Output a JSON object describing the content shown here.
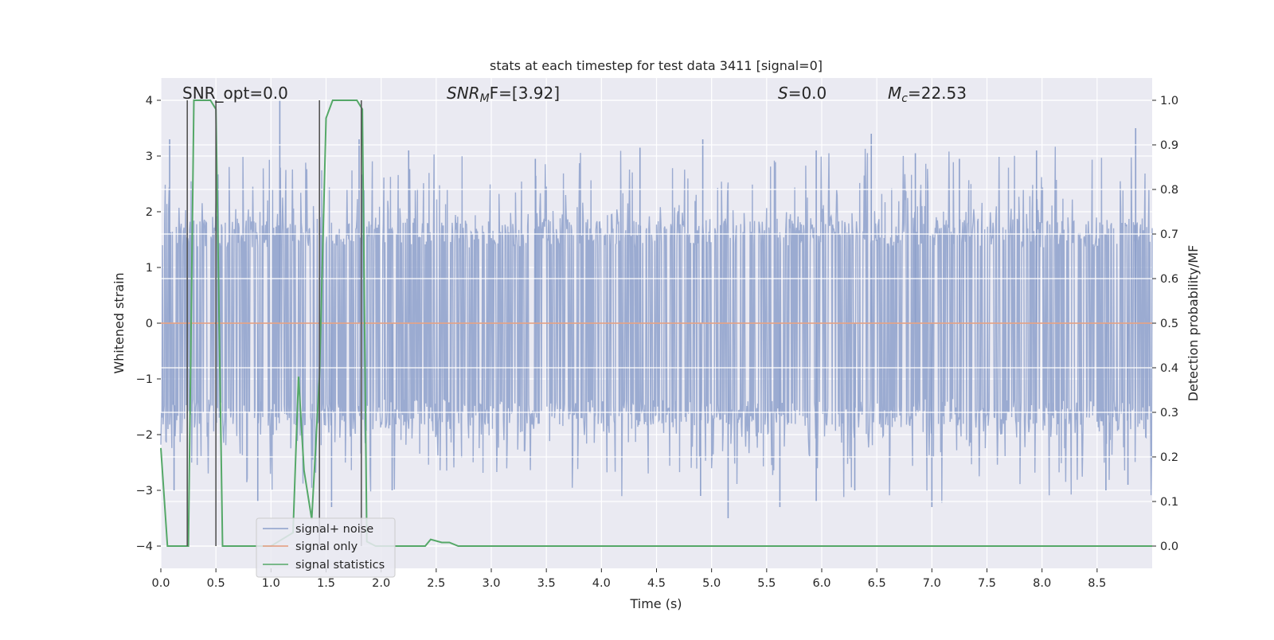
{
  "chart_data": {
    "type": "line",
    "title": "stats at each timestep for test data 3411 [signal=0]",
    "xlabel": "Time (s)",
    "ylabel_left": "Whitened strain",
    "ylabel_right": "Detection probability/MF",
    "xlim": [
      0.0,
      9.0
    ],
    "ylim_left": [
      -4.4,
      4.4
    ],
    "ylim_right": [
      -0.05,
      1.05
    ],
    "xticks": [
      "0.0",
      "0.5",
      "1.0",
      "1.5",
      "2.0",
      "2.5",
      "3.0",
      "3.5",
      "4.0",
      "4.5",
      "5.0",
      "5.5",
      "6.0",
      "6.5",
      "7.0",
      "7.5",
      "8.0",
      "8.5"
    ],
    "yticks_left": [
      "−4",
      "−3",
      "−2",
      "−1",
      "0",
      "1",
      "2",
      "3",
      "4"
    ],
    "yticks_right": [
      "0.0",
      "0.1",
      "0.2",
      "0.3",
      "0.4",
      "0.5",
      "0.6",
      "0.7",
      "0.8",
      "0.9",
      "1.0"
    ],
    "annotations": {
      "snr_opt": "SNR_opt=0.0",
      "snr_mf_base": "SNR",
      "snr_mf_sub": "M",
      "snr_mf_tail": "F=[3.92]",
      "s_base": "S",
      "s_tail": "=0.0",
      "mc_base": "M",
      "mc_sub": "c",
      "mc_tail": "=22.53"
    },
    "legend": {
      "position": "lower-left",
      "entries": [
        "signal+ noise",
        "signal only",
        "signal statistics"
      ]
    },
    "series": [
      {
        "name": "signal+ noise",
        "kind": "noise",
        "color": "#8da0cb",
        "envelope": 1.6,
        "spike_peaks": [
          {
            "x": 0.08,
            "v": 3.3
          },
          {
            "x": 1.08,
            "v": 4.0
          },
          {
            "x": 1.8,
            "v": 3.3
          },
          {
            "x": 2.25,
            "v": 3.1
          },
          {
            "x": 3.4,
            "v": 2.95
          },
          {
            "x": 4.35,
            "v": 3.15
          },
          {
            "x": 4.92,
            "v": 3.3
          },
          {
            "x": 5.95,
            "v": 3.1
          },
          {
            "x": 6.45,
            "v": 3.4
          },
          {
            "x": 6.85,
            "v": 3.05
          },
          {
            "x": 7.25,
            "v": 2.95
          },
          {
            "x": 7.95,
            "v": 3.1
          },
          {
            "x": 8.85,
            "v": 3.5
          }
        ],
        "spike_troughs": [
          {
            "x": 0.12,
            "v": -3.0
          },
          {
            "x": 0.88,
            "v": -3.2
          },
          {
            "x": 1.55,
            "v": -3.3
          },
          {
            "x": 2.1,
            "v": -3.0
          },
          {
            "x": 4.9,
            "v": -3.1
          },
          {
            "x": 5.15,
            "v": -3.5
          },
          {
            "x": 5.62,
            "v": -3.3
          },
          {
            "x": 5.95,
            "v": -3.2
          },
          {
            "x": 6.3,
            "v": -3.0
          },
          {
            "x": 7.0,
            "v": -3.3
          },
          {
            "x": 8.58,
            "v": -3.0
          },
          {
            "x": 8.78,
            "v": -2.9
          }
        ]
      },
      {
        "name": "signal only",
        "kind": "line",
        "axis": "left",
        "color": "#e39a7b",
        "x": [
          0.0,
          9.0
        ],
        "y": [
          0.0,
          0.0
        ]
      },
      {
        "name": "signal statistics",
        "kind": "line",
        "axis": "right",
        "color": "#55a868",
        "x": [
          0.0,
          0.06,
          0.2,
          0.25,
          0.3,
          0.4,
          0.45,
          0.5,
          0.56,
          0.65,
          0.7,
          1.0,
          1.2,
          1.25,
          1.3,
          1.37,
          1.44,
          1.5,
          1.56,
          1.78,
          1.83,
          1.87,
          1.95,
          2.3,
          2.4,
          2.45,
          2.55,
          2.62,
          2.7,
          9.0
        ],
        "y": [
          0.22,
          0.0,
          0.0,
          0.0,
          1.0,
          1.0,
          1.0,
          0.98,
          0.0,
          0.0,
          0.0,
          0.0,
          0.03,
          0.38,
          0.17,
          0.06,
          0.38,
          0.96,
          1.0,
          1.0,
          0.98,
          0.01,
          0.0,
          0.0,
          0.0,
          0.015,
          0.008,
          0.008,
          0.0,
          0.0
        ]
      }
    ],
    "vertical_markers": [
      0.24,
      0.5,
      1.44,
      1.82
    ],
    "marker_color": "#555555"
  }
}
